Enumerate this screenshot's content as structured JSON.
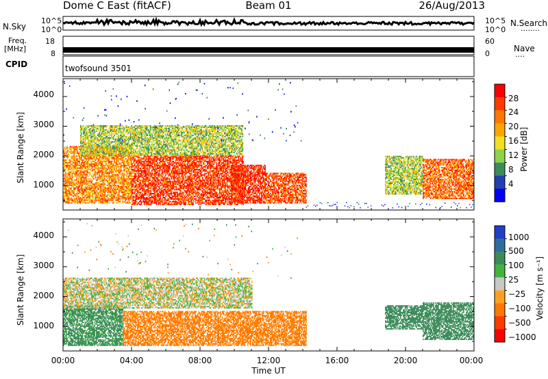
{
  "header": {
    "radar": "Dome C East (fitACF)",
    "beam": "Beam 01",
    "date": "26/Aug/2013"
  },
  "left_labels": {
    "nsky": "N.Sky",
    "freq1": "Freq.",
    "freq2": "[MHz]",
    "cpid": "CPID"
  },
  "right_labels": {
    "nsearch": "N.Search",
    "nsearch_dots": "········",
    "nave": "Nave",
    "nave_dots": "····"
  },
  "noise_panel": {
    "top_left": "10^5",
    "bottom_left": "10^0",
    "top_right": "10^5",
    "bottom_right": "10^0"
  },
  "freq_panel": {
    "top_left": "18",
    "bottom_left": "8",
    "top_right": "60",
    "bottom_right": "0"
  },
  "cpid_text": "twofsound 3501",
  "x_ticks": [
    "00:00",
    "04:00",
    "08:00",
    "12:00",
    "16:00",
    "20:00",
    "00:00"
  ],
  "x_label": "Time UT",
  "y_ticks": [
    "1000",
    "2000",
    "3000",
    "4000"
  ],
  "y_label": "Slant Range [km]",
  "power_bar": {
    "label": "Power [dB]",
    "ticks": [
      "28",
      "24",
      "20",
      "16",
      "12",
      "8",
      "4"
    ],
    "colors": [
      "#ff0000",
      "#ff3a00",
      "#ff7800",
      "#ffa500",
      "#f0e020",
      "#8cd24a",
      "#3c8c5a",
      "#2040b0",
      "#0000ff"
    ]
  },
  "velocity_bar": {
    "label": "Velocity [m s⁻¹]",
    "ticks": [
      "1000",
      "500",
      "100",
      "25",
      "−25",
      "−100",
      "−500",
      "−1000"
    ],
    "colors": [
      "#2040c8",
      "#2e6e9e",
      "#3c8c5a",
      "#40b43c",
      "#c8c8c8",
      "#ffa020",
      "#ff7800",
      "#ff3a00",
      "#ff0000"
    ]
  },
  "chart_data": [
    {
      "type": "heatmap",
      "title": "Power",
      "xlabel": "Time UT",
      "ylabel": "Slant Range [km]",
      "xlim": [
        0,
        24
      ],
      "ylim": [
        180,
        4600
      ],
      "colorbar": {
        "label": "Power [dB]",
        "range": [
          0,
          30
        ]
      },
      "regions": [
        {
          "t": [
            0.0,
            4.0
          ],
          "r": [
            400,
            2300
          ],
          "level": 22
        },
        {
          "t": [
            4.0,
            10.5
          ],
          "r": [
            350,
            2000
          ],
          "level": 27
        },
        {
          "t": [
            9.8,
            11.8
          ],
          "r": [
            400,
            1700
          ],
          "level": 28
        },
        {
          "t": [
            11.8,
            14.2
          ],
          "r": [
            400,
            1400
          ],
          "level": 26
        },
        {
          "t": [
            1.0,
            10.5
          ],
          "r": [
            2000,
            3000
          ],
          "level": 14
        },
        {
          "t": [
            18.8,
            21.0
          ],
          "r": [
            700,
            2000
          ],
          "level": 14
        },
        {
          "t": [
            21.0,
            24.0
          ],
          "r": [
            550,
            1900
          ],
          "level": 24
        }
      ]
    },
    {
      "type": "heatmap",
      "title": "Velocity",
      "xlabel": "Time UT",
      "ylabel": "Slant Range [km]",
      "xlim": [
        0,
        24
      ],
      "ylim": [
        180,
        4600
      ],
      "colorbar": {
        "label": "Velocity [m s⁻¹]",
        "range": [
          -1000,
          1000
        ]
      },
      "regions": [
        {
          "t": [
            0.0,
            3.5
          ],
          "r": [
            350,
            1700
          ],
          "velocity": 150
        },
        {
          "t": [
            3.5,
            14.2
          ],
          "r": [
            350,
            1500
          ],
          "velocity": -150
        },
        {
          "t": [
            0.0,
            11.0
          ],
          "r": [
            1600,
            2600
          ],
          "velocity": 0
        },
        {
          "t": [
            18.8,
            21.0
          ],
          "r": [
            900,
            1700
          ],
          "velocity": 200
        },
        {
          "t": [
            21.0,
            24.0
          ],
          "r": [
            550,
            1800
          ],
          "velocity": 400
        }
      ]
    }
  ]
}
